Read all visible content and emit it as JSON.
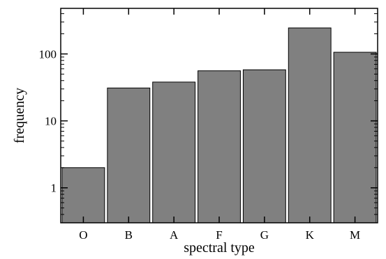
{
  "chart_data": {
    "type": "bar",
    "categories": [
      "O",
      "B",
      "A",
      "F",
      "G",
      "K",
      "M"
    ],
    "values": [
      2,
      31,
      38,
      56,
      58,
      245,
      106
    ],
    "xlabel": "spectral type",
    "ylabel": "frequency",
    "y_scale": "log",
    "ylim": [
      0.3,
      480
    ],
    "y_major_ticks": [
      1,
      10,
      100
    ],
    "y_tick_labels": [
      "1",
      "10",
      "100"
    ],
    "grid": false,
    "legend": "none",
    "bar_color": "#808080",
    "bar_edge_color": "#000000"
  }
}
